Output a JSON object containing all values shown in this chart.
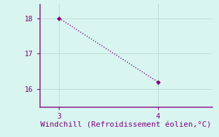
{
  "x": [
    3,
    4
  ],
  "y": [
    18.0,
    16.2
  ],
  "line_color": "#800080",
  "marker": "D",
  "marker_size": 3,
  "xlabel": "Windchill (Refroidissement éolien,°C)",
  "xlabel_fontsize": 8,
  "xlim": [
    2.8,
    4.55
  ],
  "ylim": [
    15.5,
    18.4
  ],
  "xticks": [
    3,
    4
  ],
  "yticks": [
    16,
    17,
    18
  ],
  "bg_color": "#d8f5f0",
  "grid_color": "#b8d8d0",
  "tick_color": "#800080",
  "label_color": "#800080",
  "spine_color": "#800080",
  "font_family": "monospace",
  "tick_fontsize": 7.5
}
